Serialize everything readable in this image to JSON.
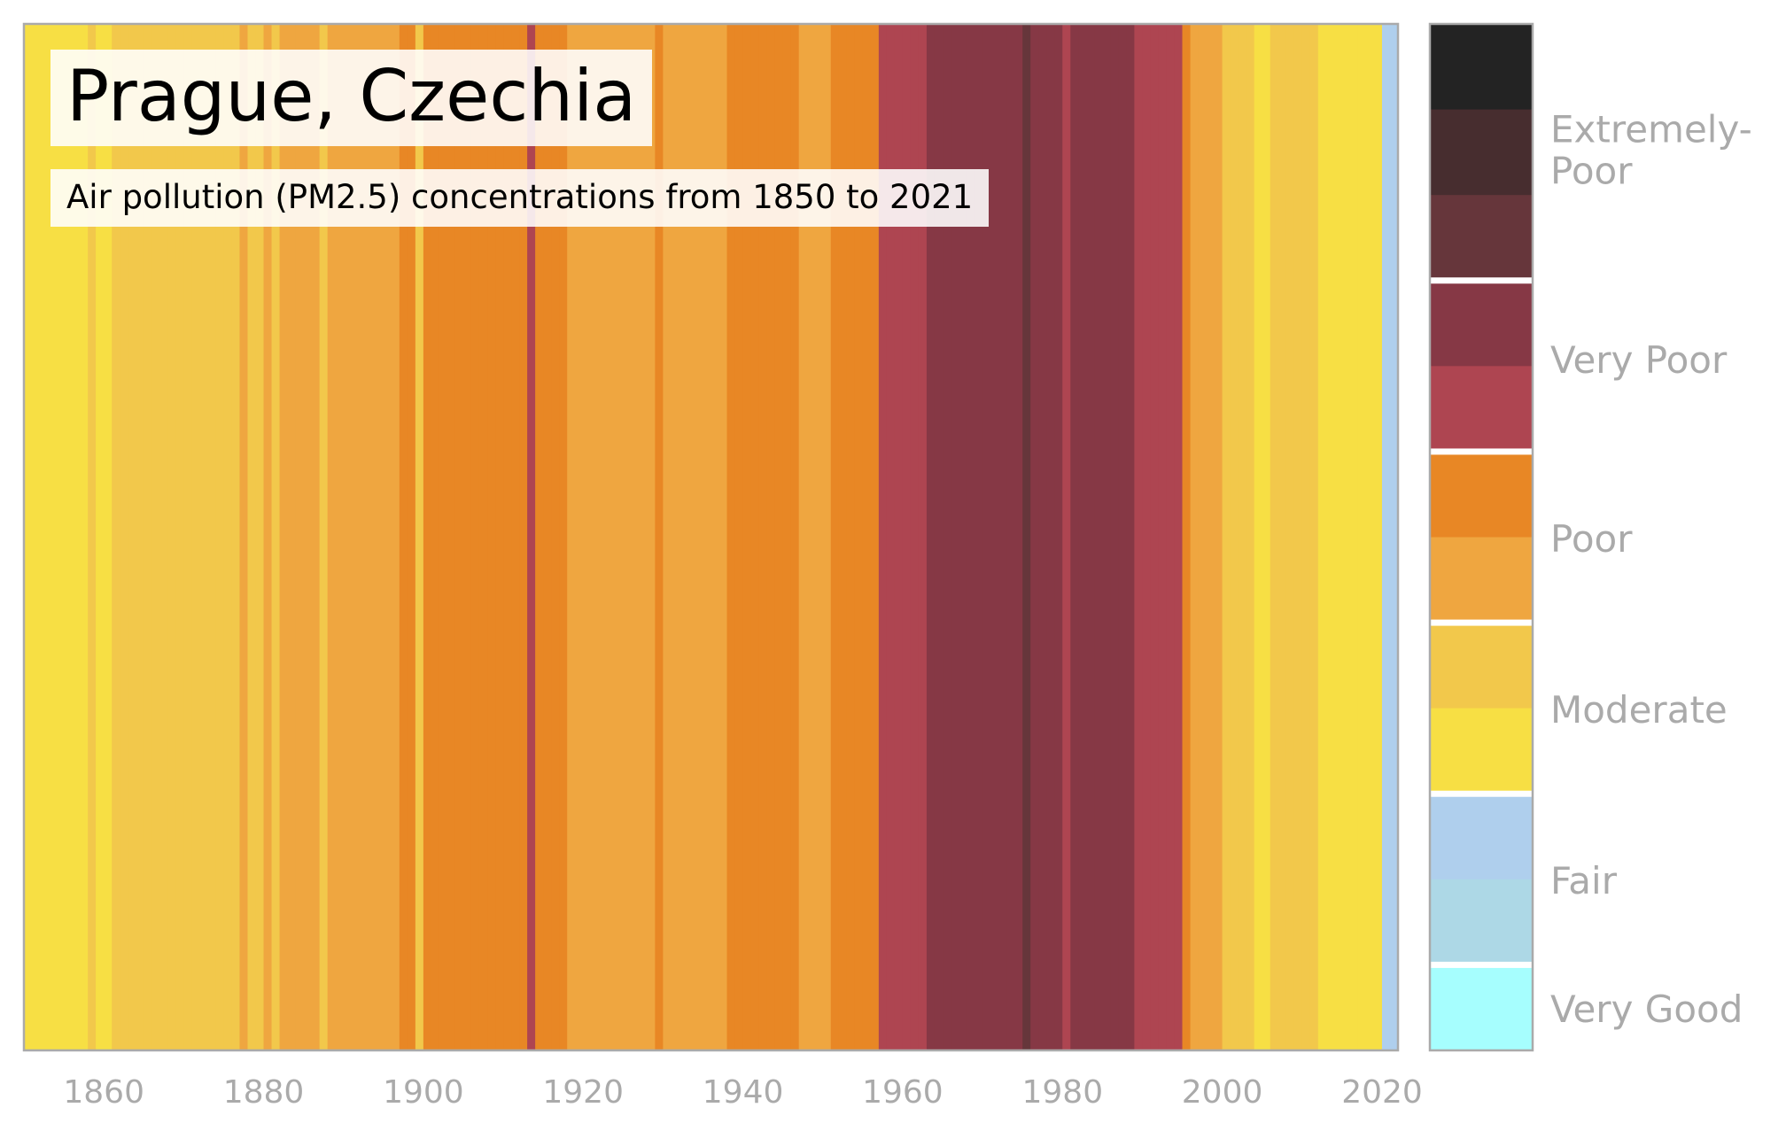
{
  "title": "Prague, Czechia",
  "subtitle": "Air pollution (PM2.5) concentrations from 1850 to 2021",
  "chart_data": {
    "type": "heatmap",
    "title": "Prague, Czechia",
    "subtitle": "Air pollution (PM2.5) concentrations from 1850 to 2021",
    "xlabel": "",
    "ylabel": "",
    "xlim": [
      1850,
      2022
    ],
    "x_ticks": [
      1860,
      1880,
      1900,
      1920,
      1940,
      1960,
      1980,
      2000,
      2020
    ],
    "grid": false,
    "level_colors": {
      "very-good": "#a6fefe",
      "fair-1": "#add8e6",
      "fair-2": "#afcfed",
      "moderate-1": "#f7df44",
      "moderate-2": "#f2c84b",
      "poor-1": "#efa640",
      "poor-2": "#e88725",
      "very-poor-1": "#ae4551",
      "very-poor-2": "#863845",
      "extremely-poor-1": "#66363b",
      "extremely-poor-2": "#472d2f",
      "extremely-poor-3": "#232323"
    },
    "years": {
      "start": 1850,
      "end": 2021,
      "levels": [
        "moderate-1",
        "moderate-1",
        "moderate-1",
        "moderate-1",
        "moderate-1",
        "moderate-1",
        "moderate-1",
        "moderate-1",
        "moderate-2",
        "moderate-1",
        "moderate-1",
        "moderate-2",
        "moderate-2",
        "moderate-2",
        "moderate-2",
        "moderate-2",
        "moderate-2",
        "moderate-2",
        "moderate-2",
        "moderate-2",
        "moderate-2",
        "moderate-2",
        "moderate-2",
        "moderate-2",
        "moderate-2",
        "moderate-2",
        "moderate-2",
        "poor-1",
        "moderate-2",
        "moderate-2",
        "poor-1",
        "moderate-2",
        "poor-1",
        "poor-1",
        "poor-1",
        "poor-1",
        "poor-1",
        "moderate-2",
        "poor-1",
        "poor-1",
        "poor-1",
        "poor-1",
        "poor-1",
        "poor-1",
        "poor-1",
        "poor-1",
        "poor-1",
        "poor-2",
        "poor-2",
        "moderate-2",
        "poor-2",
        "poor-2",
        "poor-2",
        "poor-2",
        "poor-2",
        "poor-2",
        "poor-2",
        "poor-2",
        "poor-2",
        "poor-2",
        "poor-2",
        "poor-2",
        "poor-2",
        "very-poor-1",
        "poor-2",
        "poor-2",
        "poor-2",
        "poor-2",
        "poor-1",
        "poor-1",
        "poor-1",
        "poor-1",
        "poor-1",
        "poor-1",
        "poor-1",
        "poor-1",
        "poor-1",
        "poor-1",
        "poor-1",
        "poor-2",
        "poor-1",
        "poor-1",
        "poor-1",
        "poor-1",
        "poor-1",
        "poor-1",
        "poor-1",
        "poor-1",
        "poor-2",
        "poor-2",
        "poor-2",
        "poor-2",
        "poor-2",
        "poor-2",
        "poor-2",
        "poor-2",
        "poor-2",
        "poor-1",
        "poor-1",
        "poor-1",
        "poor-1",
        "poor-2",
        "poor-2",
        "poor-2",
        "poor-2",
        "poor-2",
        "poor-2",
        "very-poor-1",
        "very-poor-1",
        "very-poor-1",
        "very-poor-1",
        "very-poor-1",
        "very-poor-1",
        "very-poor-2",
        "very-poor-2",
        "very-poor-2",
        "very-poor-2",
        "very-poor-2",
        "very-poor-2",
        "very-poor-2",
        "very-poor-2",
        "very-poor-2",
        "very-poor-2",
        "very-poor-2",
        "very-poor-2",
        "extremely-poor-1",
        "very-poor-2",
        "very-poor-2",
        "very-poor-2",
        "very-poor-2",
        "very-poor-1",
        "very-poor-2",
        "very-poor-2",
        "very-poor-2",
        "very-poor-2",
        "very-poor-2",
        "very-poor-2",
        "very-poor-2",
        "very-poor-2",
        "very-poor-1",
        "very-poor-1",
        "very-poor-1",
        "very-poor-1",
        "very-poor-1",
        "very-poor-1",
        "poor-2",
        "poor-1",
        "poor-1",
        "poor-1",
        "poor-1",
        "moderate-2",
        "moderate-2",
        "moderate-2",
        "moderate-2",
        "moderate-1",
        "moderate-1",
        "moderate-2",
        "moderate-2",
        "moderate-2",
        "moderate-2",
        "moderate-2",
        "moderate-2",
        "moderate-1",
        "moderate-1",
        "moderate-1",
        "moderate-1",
        "moderate-1",
        "moderate-1",
        "moderate-1",
        "moderate-1",
        "fair-2",
        "fair-2"
      ]
    },
    "legend": {
      "placement": "right",
      "segments": [
        {
          "level": "extremely-poor-3",
          "color": "#232323"
        },
        {
          "level": "extremely-poor-2",
          "color": "#472d2f"
        },
        {
          "level": "extremely-poor-1",
          "color": "#66363b"
        },
        {
          "level": "very-poor-2",
          "color": "#863845"
        },
        {
          "level": "very-poor-1",
          "color": "#ae4551"
        },
        {
          "level": "poor-2",
          "color": "#e88725"
        },
        {
          "level": "poor-1",
          "color": "#efa640"
        },
        {
          "level": "moderate-2",
          "color": "#f2c84b"
        },
        {
          "level": "moderate-1",
          "color": "#f7df44"
        },
        {
          "level": "fair-2",
          "color": "#afcfed"
        },
        {
          "level": "fair-1",
          "color": "#add8e6"
        },
        {
          "level": "very-good",
          "color": "#a6fefe"
        }
      ],
      "categories": [
        {
          "label": "Extremely-\nPoor",
          "lines": [
            "Extremely-",
            "Poor"
          ]
        },
        {
          "label": "Very Poor",
          "lines": [
            "Very Poor"
          ]
        },
        {
          "label": "Poor",
          "lines": [
            "Poor"
          ]
        },
        {
          "label": "Moderate",
          "lines": [
            "Moderate"
          ]
        },
        {
          "label": "Fair",
          "lines": [
            "Fair"
          ]
        },
        {
          "label": "Very Good",
          "lines": [
            "Very Good"
          ]
        }
      ]
    }
  }
}
